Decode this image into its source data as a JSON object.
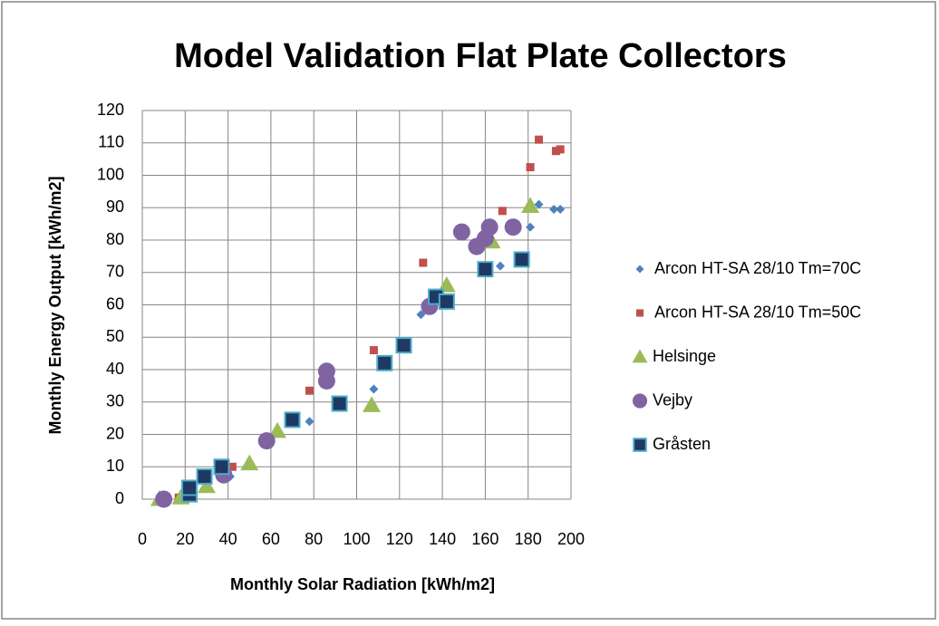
{
  "chart_data": {
    "type": "scatter",
    "title": "Model Validation Flat Plate Collectors",
    "x_label": "Monthly Solar Radiation  [kWh/m2]",
    "y_label": "Monthly Energy Output  [kWh/m2]",
    "xlim": [
      0,
      200
    ],
    "xticks": [
      0,
      20,
      40,
      60,
      80,
      100,
      120,
      140,
      160,
      180,
      200
    ],
    "ylim": [
      0,
      120
    ],
    "yticks": [
      0,
      10,
      20,
      30,
      40,
      50,
      60,
      70,
      80,
      90,
      100,
      110,
      120
    ],
    "grid": true,
    "legend": "right",
    "series": [
      {
        "name": "Arcon HT-SA 28/10 Tm=70C",
        "color": "#4f81bd",
        "marker": "diamond",
        "x": [
          20,
          41,
          78,
          108,
          130,
          167,
          181,
          185,
          192,
          195
        ],
        "y": [
          0.5,
          7,
          24,
          34,
          57,
          72,
          84,
          91,
          89.5,
          89.5
        ]
      },
      {
        "name": "Arcon HT-SA 28/10 Tm=50C",
        "color": "#c0504d",
        "marker": "square",
        "x": [
          17,
          30,
          42,
          78,
          108,
          131,
          168,
          181,
          185,
          193,
          195
        ],
        "y": [
          0.5,
          7,
          10,
          33.5,
          46,
          73,
          89,
          102.5,
          111,
          107.5,
          108
        ]
      },
      {
        "name": "Helsinge",
        "color": "#9bbb59",
        "marker": "triangle",
        "x": [
          8,
          18,
          30,
          50,
          63,
          107,
          142,
          163,
          181
        ],
        "y": [
          0,
          0.5,
          4,
          11,
          21,
          29,
          66,
          79.5,
          90.5
        ]
      },
      {
        "name": "Vejby",
        "color": "#8064a2",
        "marker": "circle",
        "x": [
          10,
          38,
          58,
          86,
          86,
          134,
          149,
          156,
          160,
          162,
          173
        ],
        "y": [
          0,
          7.5,
          18,
          39.5,
          36.5,
          59.5,
          82.5,
          78,
          80.5,
          84,
          84
        ]
      },
      {
        "name": "Gråsten",
        "color": "#1f3864",
        "edge_color": "#4bacc6",
        "marker": "bigsquare",
        "x": [
          22,
          22,
          29,
          37,
          70,
          92,
          113,
          122,
          137,
          142,
          160,
          177
        ],
        "y": [
          1.5,
          3.5,
          7,
          10,
          24.5,
          29.5,
          42,
          47.5,
          62.5,
          61,
          71,
          74
        ]
      }
    ]
  }
}
